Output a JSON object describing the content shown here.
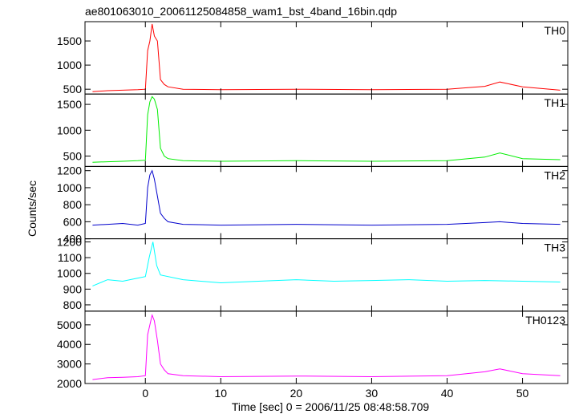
{
  "chart_data": {
    "type": "line",
    "title": "ae801063010_20061125084858_wam1_bst_4band_16bin.qdp",
    "xlabel": "Time [sec] 0 = 2006/11/25 08:48:58.709",
    "ylabel": "Counts/sec",
    "xlim": [
      -8,
      56
    ],
    "x_ticks": [
      0,
      10,
      20,
      30,
      40,
      50
    ],
    "grid": false,
    "panels": [
      {
        "name": "TH0",
        "color": "#ff0000",
        "ylim": [
          400,
          1900
        ],
        "y_ticks": [
          500,
          1000,
          1500
        ],
        "x": [
          -7,
          -5,
          -3,
          -1,
          0,
          0.3,
          0.6,
          0.9,
          1.2,
          1.6,
          2,
          2.5,
          3,
          5,
          10,
          20,
          30,
          40,
          45,
          47,
          50,
          55
        ],
        "y": [
          450,
          470,
          480,
          490,
          500,
          1300,
          1500,
          1850,
          1600,
          1500,
          700,
          600,
          550,
          500,
          490,
          500,
          490,
          500,
          560,
          650,
          550,
          480
        ]
      },
      {
        "name": "TH1",
        "color": "#00ee00",
        "ylim": [
          300,
          1700
        ],
        "y_ticks": [
          500,
          1000,
          1500
        ],
        "x": [
          -7,
          -5,
          -3,
          -1,
          0,
          0.3,
          0.6,
          0.9,
          1.2,
          1.6,
          2,
          2.5,
          3,
          5,
          10,
          20,
          30,
          40,
          45,
          47,
          50,
          55
        ],
        "y": [
          380,
          390,
          400,
          410,
          420,
          1300,
          1550,
          1650,
          1600,
          1400,
          650,
          500,
          450,
          410,
          400,
          410,
          400,
          410,
          480,
          560,
          450,
          430
        ]
      },
      {
        "name": "TH2",
        "color": "#0000cc",
        "ylim": [
          400,
          1250
        ],
        "y_ticks": [
          400,
          600,
          800,
          1000,
          1200
        ],
        "x": [
          -7,
          -5,
          -3,
          -1,
          0,
          0.3,
          0.6,
          0.9,
          1.2,
          1.6,
          2,
          2.5,
          3,
          5,
          10,
          20,
          30,
          40,
          45,
          47,
          50,
          55
        ],
        "y": [
          560,
          570,
          580,
          560,
          580,
          1000,
          1150,
          1200,
          1100,
          900,
          700,
          640,
          600,
          570,
          560,
          570,
          560,
          570,
          590,
          600,
          580,
          570
        ]
      },
      {
        "name": "TH3",
        "color": "#00ffff",
        "ylim": [
          760,
          1220
        ],
        "y_ticks": [
          800,
          900,
          1000,
          1100,
          1200
        ],
        "x": [
          -7,
          -5,
          -3,
          -1,
          0,
          0.5,
          1,
          1.5,
          2,
          5,
          10,
          15,
          20,
          25,
          30,
          35,
          40,
          45,
          50,
          55
        ],
        "y": [
          920,
          960,
          950,
          970,
          980,
          1100,
          1200,
          1050,
          990,
          960,
          940,
          950,
          960,
          950,
          955,
          960,
          950,
          955,
          950,
          945
        ]
      },
      {
        "name": "TH0123",
        "color": "#ff00ff",
        "ylim": [
          2000,
          5700
        ],
        "y_ticks": [
          2000,
          3000,
          4000,
          5000
        ],
        "x": [
          -7,
          -5,
          -3,
          -1,
          0,
          0.3,
          0.6,
          0.9,
          1.2,
          1.6,
          2,
          2.5,
          3,
          5,
          10,
          20,
          30,
          40,
          45,
          47,
          50,
          55
        ],
        "y": [
          2200,
          2300,
          2320,
          2350,
          2400,
          4500,
          5000,
          5500,
          5200,
          4200,
          3000,
          2700,
          2500,
          2400,
          2350,
          2380,
          2350,
          2400,
          2600,
          2750,
          2500,
          2400
        ]
      }
    ]
  }
}
